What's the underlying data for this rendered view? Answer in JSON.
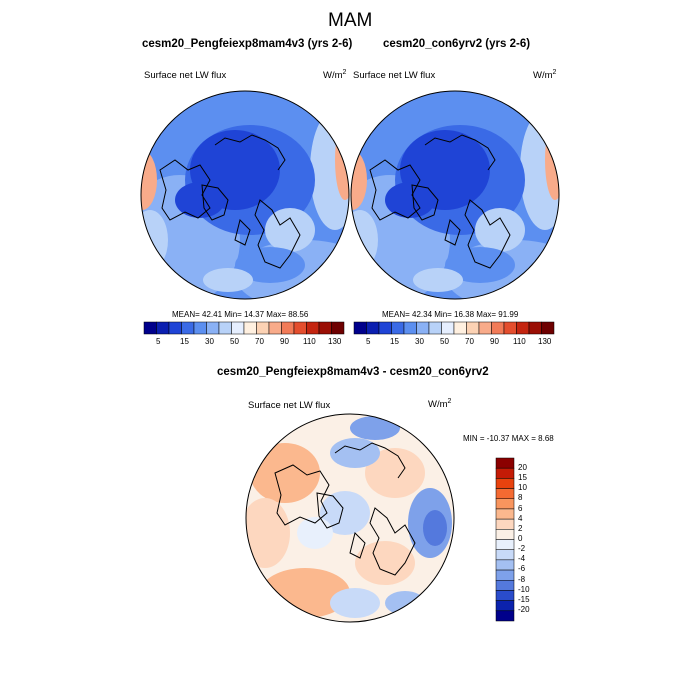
{
  "figure": {
    "title": "MAM"
  },
  "panels": [
    {
      "title": "cesm20_Pengfeiexp8mam4v3 (yrs 2-6)",
      "variable": "Surface net LW flux",
      "units_base": "W/m",
      "units_exp": "2",
      "stats": "MEAN=  42.41  Min=  14.37  Max=  88.56"
    },
    {
      "title": "cesm20_con6yrv2 (yrs 2-6)",
      "variable": "Surface net LW flux",
      "units_base": "W/m",
      "units_exp": "2",
      "stats": "MEAN=  42.34  Min=  16.38  Max=  91.99"
    },
    {
      "title": "cesm20_Pengfeiexp8mam4v3 - cesm20_con6yrv2",
      "variable": "Surface net LW flux",
      "units_base": "W/m",
      "units_exp": "2",
      "stats": "MIN = -10.37 MAX =   8.68"
    }
  ],
  "horizontal_colorbar": {
    "labels": [
      "5",
      "15",
      "30",
      "50",
      "70",
      "90",
      "110",
      "130"
    ],
    "colors": [
      "#00008b",
      "#0b1fb0",
      "#1f44d6",
      "#3a6ae6",
      "#5c8ff0",
      "#8ab1f5",
      "#b8d2f8",
      "#e6efff",
      "#fff0e0",
      "#fcd2b4",
      "#f8ab8a",
      "#f27b58",
      "#e44e2e",
      "#c42510",
      "#9a0e04",
      "#6e0000"
    ]
  },
  "vertical_colorbar": {
    "labels": [
      "20",
      "15",
      "10",
      "8",
      "6",
      "4",
      "2",
      "0",
      "-2",
      "-4",
      "-6",
      "-8",
      "-10",
      "-15",
      "-20"
    ],
    "colors": [
      "#8b0000",
      "#c41b06",
      "#e8420e",
      "#f46a32",
      "#f8955e",
      "#fbb88e",
      "#fdd7bf",
      "#fbf0e6",
      "#e8f0fc",
      "#c8daf8",
      "#a4c0f2",
      "#7ea1ea",
      "#5479dd",
      "#2a4ccb",
      "#0b22ad",
      "#00008b"
    ]
  }
}
